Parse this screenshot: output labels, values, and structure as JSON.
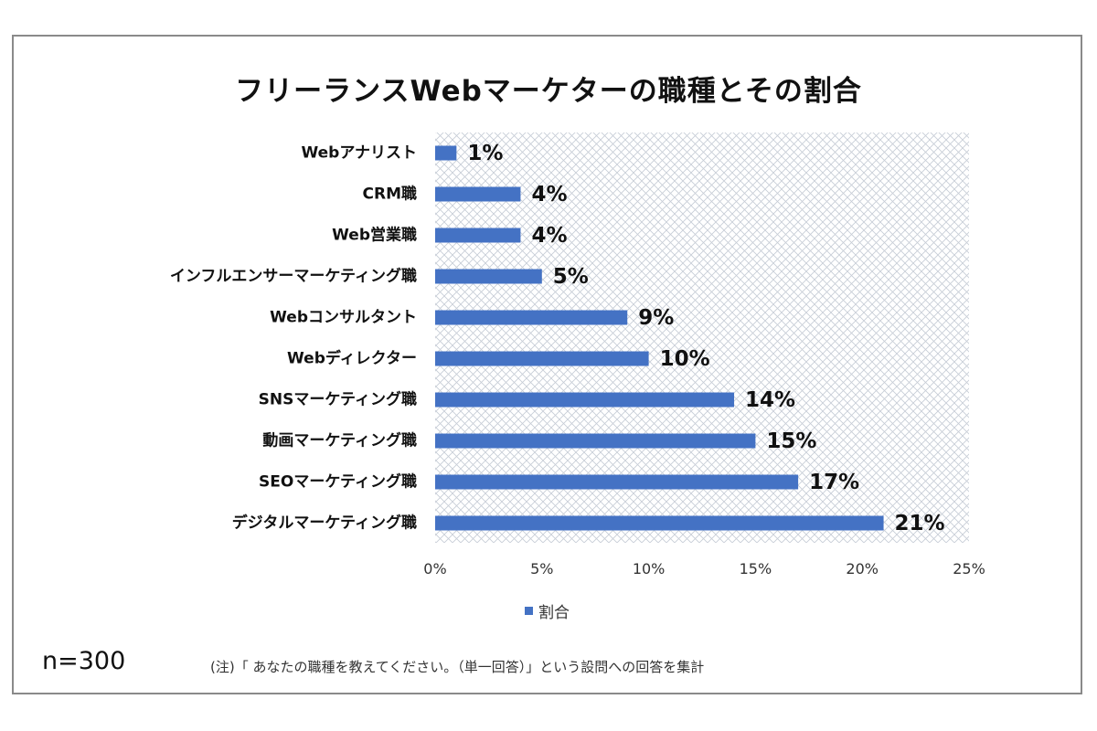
{
  "chart_data": {
    "type": "bar",
    "orientation": "horizontal",
    "title": "フリーランスWebマーケターの職種とその割合",
    "categories": [
      "Webアナリスト",
      "CRM職",
      "Web営業職",
      "インフルエンサーマーケティング職",
      "Webコンサルタント",
      "Webディレクター",
      "SNSマーケティング職",
      "動画マーケティング職",
      "SEOマーケティング職",
      "デジタルマーケティング職"
    ],
    "series": [
      {
        "name": "割合",
        "values": [
          1,
          4,
          4,
          5,
          9,
          10,
          14,
          15,
          17,
          21
        ]
      }
    ],
    "data_labels": [
      "1%",
      "4%",
      "4%",
      "5%",
      "9%",
      "10%",
      "14%",
      "15%",
      "17%",
      "21%"
    ],
    "xlim": [
      0,
      25
    ],
    "x_ticks": [
      "0%",
      "5%",
      "10%",
      "15%",
      "20%",
      "25%"
    ],
    "legend_position": "bottom",
    "bar_color": "#4472c4",
    "plot_background": "crosshatch"
  },
  "footer": {
    "sample_size": "n=300",
    "note": "(注)「 あなたの職種を教えてください。（単一回答）」という設問への回答を集計"
  }
}
